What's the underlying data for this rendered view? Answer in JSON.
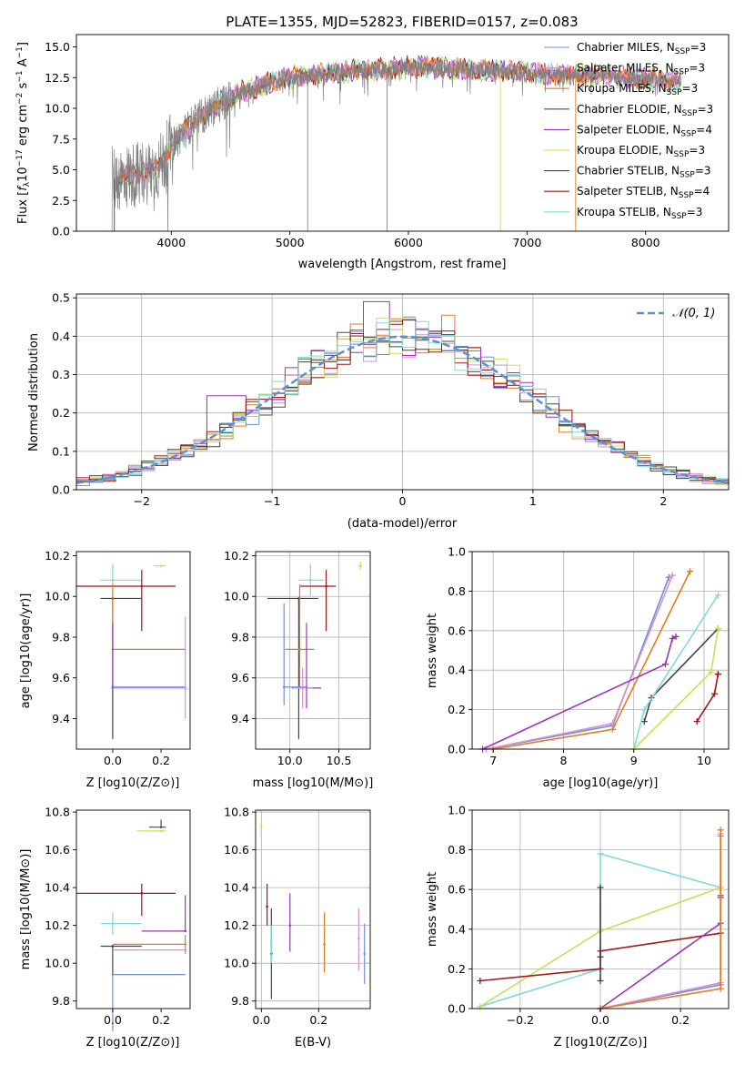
{
  "figure_title": "PLATE=1355, MJD=52823, FIBERID=0157, z=0.083",
  "colors": {
    "chabrier_miles": "#6f8fd6",
    "salpeter_miles": "#d98fcf",
    "kroupa_miles": "#e07b20",
    "chabrier_elodie": "#3a5a3a",
    "salpeter_elodie": "#9a35b8",
    "kroupa_elodie": "#c6e05a",
    "chabrier_stelib": "#444444",
    "salpeter_stelib": "#a01818",
    "kroupa_stelib": "#7fd8dc",
    "spectrum": "#808080",
    "normal": "#5b8fd6"
  },
  "chart_data": [
    {
      "name": "spectrum",
      "type": "line",
      "xlabel": "wavelength [Angstrom, rest frame]",
      "ylabel": "Flux [f_λ10^-17 erg cm^-2 s^-1 A^-1]",
      "xlim": [
        3200,
        8700
      ],
      "ylim": [
        0,
        16
      ],
      "xticks": [
        4000,
        5000,
        6000,
        7000,
        8000
      ],
      "yticks": [
        0.0,
        2.5,
        5.0,
        7.5,
        10.0,
        12.5,
        15.0
      ],
      "grid": false,
      "legend_position": "right",
      "legend": [
        {
          "label": "Chabrier MILES, N",
          "sub": "SSP",
          "suffix": "=3",
          "color": "#6f8fd6"
        },
        {
          "label": "Salpeter MILES, N",
          "sub": "SSP",
          "suffix": "=3",
          "color": "#d98fcf"
        },
        {
          "label": "Kroupa MILES, N",
          "sub": "SSP",
          "suffix": "=3",
          "color": "#e07b20"
        },
        {
          "label": "Chabrier ELODIE, N",
          "sub": "SSP",
          "suffix": "=3",
          "color": "#3a5a3a"
        },
        {
          "label": "Salpeter ELODIE, N",
          "sub": "SSP",
          "suffix": "=4",
          "color": "#9a35b8"
        },
        {
          "label": "Kroupa ELODIE, N",
          "sub": "SSP",
          "suffix": "=3",
          "color": "#c6e05a"
        },
        {
          "label": "Chabrier STELIB, N",
          "sub": "SSP",
          "suffix": "=3",
          "color": "#444444"
        },
        {
          "label": "Salpeter STELIB, N",
          "sub": "SSP",
          "suffix": "=4",
          "color": "#a01818"
        },
        {
          "label": "Kroupa STELIB, N",
          "sub": "SSP",
          "suffix": "=3",
          "color": "#7fd8dc"
        }
      ],
      "continuum": {
        "x": [
          3500,
          3700,
          3900,
          4000,
          4200,
          4400,
          4600,
          4800,
          5000,
          5200,
          5400,
          5600,
          5800,
          6000,
          6200,
          6400,
          6600,
          6800,
          7000,
          7200,
          7400,
          7600,
          7800,
          8000,
          8200,
          8300
        ],
        "y": [
          4.2,
          4.6,
          5.2,
          7.0,
          9.0,
          10.3,
          11.3,
          12.0,
          12.5,
          12.7,
          12.9,
          13.1,
          13.2,
          13.4,
          13.3,
          13.2,
          13.1,
          13.0,
          12.9,
          12.8,
          12.8,
          12.7,
          12.5,
          12.4,
          12.3,
          12.2
        ]
      }
    },
    {
      "name": "residuals",
      "type": "line",
      "xlabel": "(data-model)/error",
      "ylabel": "Normed distribution",
      "xlim": [
        -2.5,
        2.5
      ],
      "ylim": [
        0,
        0.51
      ],
      "xticks": [
        -2,
        -1,
        0,
        1,
        2
      ],
      "yticks": [
        0.0,
        0.1,
        0.2,
        0.3,
        0.4,
        0.5
      ],
      "grid": true,
      "legend_position": "top-right",
      "legend": [
        {
          "label": "𝒩(0, 1)",
          "color": "#5b8fd6"
        }
      ],
      "bin_width": 0.1,
      "bin_start": -2.5
    },
    {
      "name": "age_vs_Z",
      "type": "scatter",
      "xlabel": "Z [log10(Z/Z⊙)]",
      "ylabel": "age [log10(age/yr)]",
      "xlim": [
        -0.15,
        0.32
      ],
      "ylim": [
        9.25,
        10.22
      ],
      "xticks": [
        0.0,
        0.2
      ],
      "yticks": [
        9.4,
        9.6,
        9.8,
        10.0,
        10.2
      ],
      "grid": false,
      "points": [
        {
          "series": "kroupa_elodie",
          "x": 0.2,
          "y": 10.15,
          "xerr": [
            0.03,
            0.02
          ],
          "yerr": [
            0.0,
            0.0
          ]
        },
        {
          "series": "kroupa_stelib",
          "x": 0.0,
          "y": 10.08,
          "xerr": [
            0.05,
            0.12
          ],
          "yerr": [
            0.08,
            0.08
          ]
        },
        {
          "series": "salpeter_stelib",
          "x": 0.12,
          "y": 10.05,
          "xerr": [
            0.27,
            0.14
          ],
          "yerr": [
            0.22,
            0.08
          ]
        },
        {
          "series": "chabrier_stelib",
          "x": 0.0,
          "y": 9.99,
          "xerr": [
            0.05,
            0.12
          ],
          "yerr": [
            0.69,
            0.0
          ]
        },
        {
          "series": "kroupa_miles",
          "x": 0.0,
          "y": 9.74,
          "xerr": [
            0.0,
            0.3
          ],
          "yerr": [
            0.0,
            0.32
          ]
        },
        {
          "series": "chabrier_miles",
          "x": 0.0,
          "y": 9.555,
          "xerr": [
            0.0,
            0.3
          ],
          "yerr": [
            0.0,
            0.0
          ]
        },
        {
          "series": "salpeter_elodie",
          "x": 0.0,
          "y": 9.55,
          "xerr": [
            0.0,
            0.3
          ],
          "yerr": [
            0.0,
            0.32
          ]
        },
        {
          "series": "salpeter_miles",
          "x": 0.3,
          "y": 9.55,
          "xerr": [
            0.3,
            0.0
          ],
          "yerr": [
            0.15,
            0.35
          ]
        }
      ]
    },
    {
      "name": "age_vs_mass",
      "type": "scatter",
      "xlabel": "mass [log10(M/M⊙)]",
      "ylabel": "",
      "xlim": [
        9.65,
        10.82
      ],
      "ylim": [
        9.25,
        10.22
      ],
      "xticks": [
        10.0,
        10.5
      ],
      "yticks": [
        9.4,
        9.6,
        9.8,
        10.0,
        10.2
      ],
      "grid": true,
      "points": [
        {
          "series": "kroupa_elodie",
          "x": 10.72,
          "y": 10.15,
          "xerr": [
            0.02,
            0.02
          ],
          "yerr": [
            0.02,
            0.02
          ]
        },
        {
          "series": "kroupa_stelib",
          "x": 10.21,
          "y": 10.08,
          "xerr": [
            0.12,
            0.14
          ],
          "yerr": [
            0.08,
            0.08
          ]
        },
        {
          "series": "salpeter_stelib",
          "x": 10.37,
          "y": 10.05,
          "xerr": [
            0.27,
            0.1
          ],
          "yerr": [
            0.22,
            0.08
          ]
        },
        {
          "series": "chabrier_stelib",
          "x": 10.09,
          "y": 9.99,
          "xerr": [
            0.32,
            0.2
          ],
          "yerr": [
            0.69,
            0.0
          ]
        },
        {
          "series": "kroupa_miles",
          "x": 10.1,
          "y": 9.74,
          "xerr": [
            0.15,
            0.15
          ],
          "yerr": [
            0.19,
            0.32
          ]
        },
        {
          "series": "chabrier_miles",
          "x": 9.94,
          "y": 9.555,
          "xerr": [
            0.0,
            0.24
          ],
          "yerr": [
            0.09,
            0.41
          ]
        },
        {
          "series": "salpeter_elodie",
          "x": 10.17,
          "y": 9.55,
          "xerr": [
            0.15,
            0.15
          ],
          "yerr": [
            0.1,
            0.32
          ]
        },
        {
          "series": "salpeter_miles",
          "x": 10.13,
          "y": 9.55,
          "xerr": [
            0.1,
            0.1
          ],
          "yerr": [
            0.1,
            0.1
          ]
        }
      ]
    },
    {
      "name": "massweight_vs_age",
      "type": "line",
      "xlabel": "age [log10(age/yr)]",
      "ylabel": "mass weight",
      "xlim": [
        6.7,
        10.35
      ],
      "ylim": [
        0,
        1.0
      ],
      "xticks": [
        7,
        8,
        9,
        10
      ],
      "yticks": [
        0.0,
        0.2,
        0.4,
        0.6,
        0.8,
        1.0
      ],
      "grid": true,
      "series": [
        {
          "name": "chabrier_miles",
          "x": [
            6.9,
            8.7,
            9.5
          ],
          "y": [
            0.0,
            0.12,
            0.87
          ]
        },
        {
          "name": "salpeter_miles",
          "x": [
            6.9,
            8.7,
            9.55
          ],
          "y": [
            0.0,
            0.13,
            0.88
          ]
        },
        {
          "name": "kroupa_miles",
          "x": [
            7.0,
            8.7,
            9.8
          ],
          "y": [
            0.0,
            0.1,
            0.9
          ]
        },
        {
          "name": "salpeter_elodie",
          "x": [
            6.85,
            9.45,
            9.55,
            9.6
          ],
          "y": [
            0.0,
            0.43,
            0.56,
            0.57
          ]
        },
        {
          "name": "chabrier_stelib",
          "x": [
            9.15,
            9.25,
            10.2
          ],
          "y": [
            0.14,
            0.26,
            0.61
          ]
        },
        {
          "name": "kroupa_stelib",
          "x": [
            9.0,
            9.15,
            10.2
          ],
          "y": [
            0.0,
            0.2,
            0.78
          ]
        },
        {
          "name": "kroupa_elodie",
          "x": [
            9.0,
            10.1,
            10.2
          ],
          "y": [
            0.0,
            0.39,
            0.61
          ]
        },
        {
          "name": "salpeter_stelib",
          "x": [
            9.9,
            10.15,
            10.2,
            10.2
          ],
          "y": [
            0.14,
            0.28,
            0.38,
            0.38
          ]
        }
      ]
    },
    {
      "name": "mass_vs_Z",
      "type": "scatter",
      "xlabel": "Z [log10(Z/Z⊙)]",
      "ylabel": "mass [log10(M/M⊙)]",
      "xlim": [
        -0.15,
        0.32
      ],
      "ylim": [
        9.76,
        10.81
      ],
      "xticks": [
        0.0,
        0.2
      ],
      "yticks": [
        9.8,
        10.0,
        10.2,
        10.4,
        10.6,
        10.8
      ],
      "grid": false,
      "points": [
        {
          "series": "chabrier_elodie",
          "x": 0.2,
          "y": 10.72,
          "xerr": [
            0.05,
            0.02
          ],
          "yerr": [
            0.0,
            0.04
          ]
        },
        {
          "series": "kroupa_elodie",
          "x": 0.2,
          "y": 10.7,
          "xerr": [
            0.1,
            0.02
          ],
          "yerr": [
            0.0,
            0.0
          ]
        },
        {
          "series": "salpeter_stelib",
          "x": 0.12,
          "y": 10.37,
          "xerr": [
            0.27,
            0.14
          ],
          "yerr": [
            0.12,
            0.05
          ]
        },
        {
          "series": "kroupa_stelib",
          "x": 0.0,
          "y": 10.21,
          "xerr": [
            0.05,
            0.12
          ],
          "yerr": [
            0.06,
            0.06
          ]
        },
        {
          "series": "salpeter_elodie",
          "x": 0.3,
          "y": 10.17,
          "xerr": [
            0.18,
            0.0
          ],
          "yerr": [
            0.0,
            0.19
          ]
        },
        {
          "series": "kroupa_miles",
          "x": 0.3,
          "y": 10.1,
          "xerr": [
            0.3,
            0.0
          ],
          "yerr": [
            0.05,
            0.05
          ]
        },
        {
          "series": "chabrier_stelib",
          "x": 0.0,
          "y": 10.09,
          "xerr": [
            0.05,
            0.12
          ],
          "yerr": [
            0.15,
            0.0
          ]
        },
        {
          "series": "salpeter_miles",
          "x": 0.3,
          "y": 10.07,
          "xerr": [
            0.3,
            0.0
          ],
          "yerr": [
            0.0,
            0.0
          ]
        },
        {
          "series": "chabrier_miles",
          "x": 0.0,
          "y": 9.94,
          "xerr": [
            0.0,
            0.3
          ],
          "yerr": [
            0.3,
            0.0
          ]
        }
      ]
    },
    {
      "name": "mass_vs_ebv",
      "type": "scatter",
      "xlabel": "E(B-V)",
      "ylabel": "",
      "xlim": [
        -0.02,
        0.38
      ],
      "ylim": [
        9.76,
        10.81
      ],
      "xticks": [
        0.0,
        0.2
      ],
      "yticks": [
        9.8,
        10.0,
        10.2,
        10.4,
        10.6,
        10.8
      ],
      "grid": true,
      "points": [
        {
          "series": "kroupa_elodie",
          "x": 0.0,
          "y": 10.72,
          "xerr": [
            0.0,
            0.0
          ],
          "yerr": [
            0.05,
            0.04
          ]
        },
        {
          "series": "salpeter_stelib",
          "x": 0.02,
          "y": 10.3,
          "xerr": [
            0.0,
            0.0
          ],
          "yerr": [
            0.1,
            0.12
          ]
        },
        {
          "series": "chabrier_stelib",
          "x": 0.035,
          "y": 10.05,
          "xerr": [
            0.0,
            0.0
          ],
          "yerr": [
            0.24,
            0.24
          ]
        },
        {
          "series": "kroupa_stelib",
          "x": 0.035,
          "y": 10.1,
          "xerr": [
            0.0,
            0.0
          ],
          "yerr": [
            0.1,
            0.1
          ]
        },
        {
          "series": "salpeter_elodie",
          "x": 0.1,
          "y": 10.2,
          "xerr": [
            0.0,
            0.0
          ],
          "yerr": [
            0.14,
            0.17
          ]
        },
        {
          "series": "kroupa_miles",
          "x": 0.22,
          "y": 10.1,
          "xerr": [
            0.0,
            0.0
          ],
          "yerr": [
            0.15,
            0.17
          ]
        },
        {
          "series": "salpeter_miles",
          "x": 0.34,
          "y": 10.13,
          "xerr": [
            0.0,
            0.0
          ],
          "yerr": [
            0.17,
            0.16
          ]
        },
        {
          "series": "chabrier_miles",
          "x": 0.36,
          "y": 10.05,
          "xerr": [
            0.0,
            0.0
          ],
          "yerr": [
            0.16,
            0.16
          ]
        }
      ]
    },
    {
      "name": "massweight_vs_Z",
      "type": "line",
      "xlabel": "Z [log10(Z/Z⊙)]",
      "ylabel": "mass weight",
      "xlim": [
        -0.32,
        0.32
      ],
      "ylim": [
        0,
        1.0
      ],
      "xticks": [
        -0.2,
        0.0,
        0.2
      ],
      "yticks": [
        0.0,
        0.2,
        0.4,
        0.6,
        0.8,
        1.0
      ],
      "grid": true,
      "series": [
        {
          "name": "kroupa_stelib",
          "x": [
            -0.3,
            0.0,
            0.0,
            0.3
          ],
          "y": [
            0.01,
            0.2,
            0.78,
            0.61
          ]
        },
        {
          "name": "kroupa_elodie",
          "x": [
            -0.3,
            0.0,
            0.3
          ],
          "y": [
            0.01,
            0.39,
            0.61
          ]
        },
        {
          "name": "salpeter_stelib",
          "x": [
            -0.3,
            0.0,
            0.0,
            0.3
          ],
          "y": [
            0.14,
            0.2,
            0.29,
            0.38
          ]
        },
        {
          "name": "chabrier_stelib",
          "x": [
            0.0,
            0.0,
            0.0
          ],
          "y": [
            0.14,
            0.26,
            0.61
          ]
        },
        {
          "name": "salpeter_elodie",
          "x": [
            0.0,
            0.3,
            0.3,
            0.3
          ],
          "y": [
            0.0,
            0.43,
            0.56,
            0.57
          ]
        },
        {
          "name": "chabrier_miles",
          "x": [
            0.0,
            0.3,
            0.3
          ],
          "y": [
            0.0,
            0.12,
            0.87
          ]
        },
        {
          "name": "salpeter_miles",
          "x": [
            0.0,
            0.3,
            0.3
          ],
          "y": [
            0.0,
            0.13,
            0.88
          ]
        },
        {
          "name": "kroupa_miles",
          "x": [
            0.0,
            0.3,
            0.3
          ],
          "y": [
            0.0,
            0.1,
            0.9
          ]
        }
      ]
    }
  ]
}
